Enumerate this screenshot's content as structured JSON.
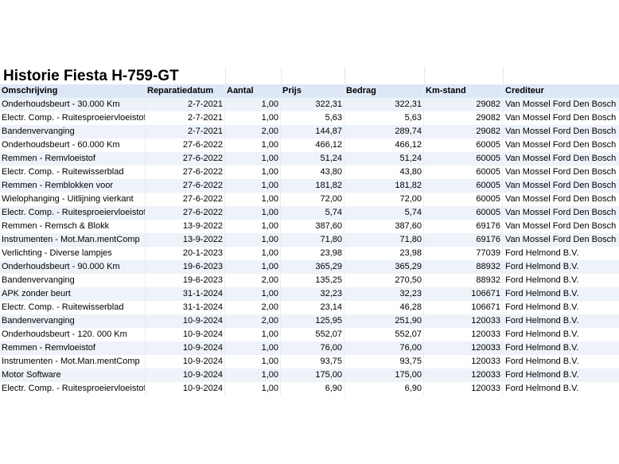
{
  "title": "Historie Fiesta H-759-GT",
  "columns": [
    "Omschrijving",
    "Reparatiedatum",
    "Aantal",
    "Prijs",
    "Bedrag",
    "Km-stand",
    "Crediteur"
  ],
  "rows": [
    [
      "Onderhoudsbeurt - 30.000 Km",
      "2-7-2021",
      "1,00",
      "322,31",
      "322,31",
      "29082",
      "Van Mossel Ford Den Bosch"
    ],
    [
      "Electr. Comp. - Ruitesproeiervloeistof",
      "2-7-2021",
      "1,00",
      "5,63",
      "5,63",
      "29082",
      "Van Mossel Ford Den Bosch"
    ],
    [
      "Bandenvervanging",
      "2-7-2021",
      "2,00",
      "144,87",
      "289,74",
      "29082",
      "Van Mossel Ford Den Bosch"
    ],
    [
      "Onderhoudsbeurt - 60.000 Km",
      "27-6-2022",
      "1,00",
      "466,12",
      "466,12",
      "60005",
      "Van Mossel Ford Den Bosch"
    ],
    [
      "Remmen - Remvloeistof",
      "27-6-2022",
      "1,00",
      "51,24",
      "51,24",
      "60005",
      "Van Mossel Ford Den Bosch"
    ],
    [
      "Electr. Comp. - Ruitewisserblad",
      "27-6-2022",
      "1,00",
      "43,80",
      "43,80",
      "60005",
      "Van Mossel Ford Den Bosch"
    ],
    [
      "Remmen - Remblokken voor",
      "27-6-2022",
      "1,00",
      "181,82",
      "181,82",
      "60005",
      "Van Mossel Ford Den Bosch"
    ],
    [
      "Wielophanging - Uitlijning vierkant",
      "27-6-2022",
      "1,00",
      "72,00",
      "72,00",
      "60005",
      "Van Mossel Ford Den Bosch"
    ],
    [
      "Electr. Comp. - Ruitesproeiervloeistof",
      "27-6-2022",
      "1,00",
      "5,74",
      "5,74",
      "60005",
      "Van Mossel Ford Den Bosch"
    ],
    [
      "Remmen - Remsch & Blokk",
      "13-9-2022",
      "1,00",
      "387,60",
      "387,60",
      "69176",
      "Van Mossel Ford Den Bosch"
    ],
    [
      "Instrumenten - Mot.Man.mentComp",
      "13-9-2022",
      "1,00",
      "71,80",
      "71,80",
      "69176",
      "Van Mossel Ford Den Bosch"
    ],
    [
      "Verlichting - Diverse lampjes",
      "20-1-2023",
      "1,00",
      "23,98",
      "23,98",
      "77039",
      "Ford Helmond B.V."
    ],
    [
      "Onderhoudsbeurt - 90.000 Km",
      "19-6-2023",
      "1,00",
      "365,29",
      "365,29",
      "88932",
      "Ford Helmond B.V."
    ],
    [
      "Bandenvervanging",
      "19-6-2023",
      "2,00",
      "135,25",
      "270,50",
      "88932",
      "Ford Helmond B.V."
    ],
    [
      "APK zonder beurt",
      "31-1-2024",
      "1,00",
      "32,23",
      "32,23",
      "106671",
      "Ford Helmond B.V."
    ],
    [
      "Electr. Comp. - Ruitewisserblad",
      "31-1-2024",
      "2,00",
      "23,14",
      "46,28",
      "106671",
      "Ford Helmond B.V."
    ],
    [
      "Bandenvervanging",
      "10-9-2024",
      "2,00",
      "125,95",
      "251,90",
      "120033",
      "Ford Helmond B.V."
    ],
    [
      "Onderhoudsbeurt - 120. 000 Km",
      "10-9-2024",
      "1,00",
      "552,07",
      "552,07",
      "120033",
      "Ford Helmond B.V."
    ],
    [
      "Remmen - Remvloeistof",
      "10-9-2024",
      "1,00",
      "76,00",
      "76,00",
      "120033",
      "Ford Helmond B.V."
    ],
    [
      "Instrumenten - Mot.Man.mentComp",
      "10-9-2024",
      "1,00",
      "93,75",
      "93,75",
      "120033",
      "Ford Helmond B.V."
    ],
    [
      "Motor Software",
      "10-9-2024",
      "1,00",
      "175,00",
      "175,00",
      "120033",
      "Ford Helmond B.V."
    ],
    [
      "Electr. Comp. - Ruitesproeiervloeistof",
      "10-9-2024",
      "1,00",
      "6,90",
      "6,90",
      "120033",
      "Ford Helmond B.V."
    ]
  ],
  "colors": {
    "header_bg": "#dde8f7",
    "stripe_bg": "#eef2f9"
  }
}
